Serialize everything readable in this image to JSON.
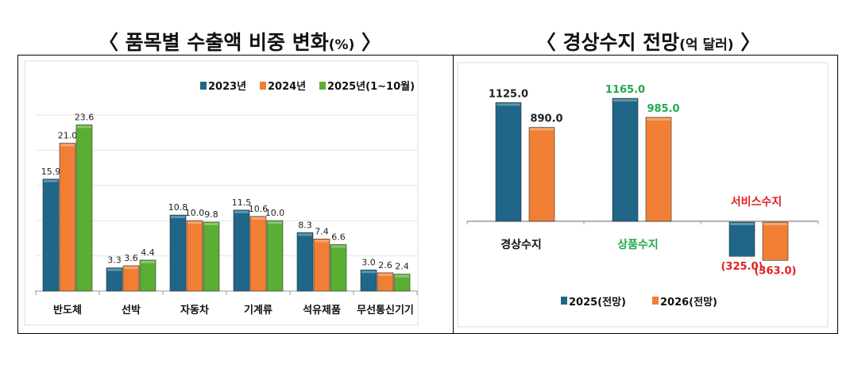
{
  "titles": {
    "left_main": "〈 품목별 수출액 비중 변화",
    "left_unit": "(%)",
    "left_close": " 〉",
    "right_main": "〈 경상수지 전망",
    "right_unit": "(억 달러)",
    "right_close": " 〉"
  },
  "colors": {
    "blue": "#1f6688",
    "orange": "#f07f35",
    "green": "#5aae34",
    "label_green": "#22a84a",
    "label_red": "#e0201f"
  },
  "chart_data": [
    {
      "type": "bar",
      "title": "품목별 수출액 비중 변화(%)",
      "categories": [
        "반도체",
        "선박",
        "자동차",
        "기계류",
        "석유제품",
        "무선통신기기"
      ],
      "series": [
        {
          "name": "2023년",
          "values": [
            15.9,
            3.3,
            10.8,
            11.5,
            8.3,
            3.0
          ],
          "labels": [
            "15.9",
            "3.3",
            "10.8",
            "11.5",
            "8.3",
            "3.0"
          ]
        },
        {
          "name": "2024년",
          "values": [
            21.0,
            3.6,
            10.0,
            10.6,
            7.4,
            2.6
          ],
          "labels": [
            "21.0",
            "3.6",
            "10.0",
            "10.6",
            "7.4",
            "2.6"
          ]
        },
        {
          "name": "2025년(1~10월)",
          "values": [
            23.6,
            4.4,
            9.8,
            10.0,
            6.6,
            2.4
          ],
          "labels": [
            "23.6",
            "4.4",
            "9.8",
            "10.0",
            "6.6",
            "2.4"
          ]
        }
      ],
      "ylim": [
        0,
        25
      ],
      "grid": true,
      "legend": "top-right"
    },
    {
      "type": "bar",
      "title": "경상수지 전망(억 달러)",
      "categories": [
        "경상수지",
        "상품수지",
        "서비스수지"
      ],
      "series": [
        {
          "name": "2025(전망)",
          "values": [
            1125.0,
            1165.0,
            -325.0
          ],
          "labels": [
            "1125.0",
            "1165.0",
            "(325.0)"
          ]
        },
        {
          "name": "2026(전망)",
          "values": [
            890.0,
            985.0,
            -363.0
          ],
          "labels": [
            "890.0",
            "985.0",
            "(363.0)"
          ]
        }
      ],
      "ylim": [
        -400,
        1200
      ],
      "grid": false,
      "legend": "bottom"
    }
  ]
}
